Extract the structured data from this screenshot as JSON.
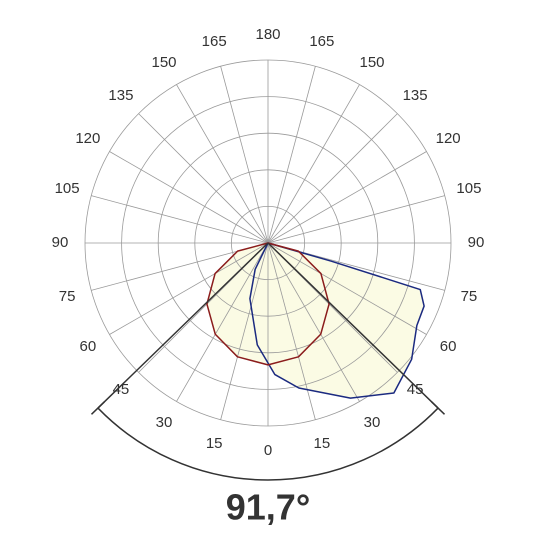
{
  "chart_data": {
    "type": "polar",
    "rlim": [
      0,
      5
    ],
    "rticks": [
      1,
      2,
      3,
      4,
      5
    ],
    "angle_ticks": [
      0,
      15,
      30,
      45,
      60,
      75,
      90,
      105,
      120,
      135,
      150,
      165,
      180,
      {
        "value": -165,
        "label": "165"
      },
      {
        "value": -150,
        "label": "150"
      },
      {
        "value": -135,
        "label": "135"
      },
      {
        "value": -120,
        "label": "120"
      },
      {
        "value": -105,
        "label": "105"
      },
      {
        "value": -90,
        "label": "90"
      },
      {
        "value": -75,
        "label": "75"
      },
      {
        "value": -60,
        "label": "60"
      },
      {
        "value": -45,
        "label": "45"
      },
      {
        "value": -30,
        "label": "30"
      },
      {
        "value": -15,
        "label": "15"
      }
    ],
    "fill_color": "#fbfbe4",
    "series": [
      {
        "color": "#1b2a80",
        "angles": [
          -30,
          -26,
          -18,
          -6,
          3,
          12,
          28,
          40,
          51,
          61,
          68,
          73,
          74,
          75
        ],
        "values": [
          0,
          0.8,
          1.6,
          2.8,
          3.6,
          4.05,
          4.8,
          5.35,
          5.05,
          4.65,
          4.6,
          4.35,
          1.8,
          0
        ]
      },
      {
        "color": "#8b1c1c",
        "angles": [
          -90,
          -75,
          -60,
          -45,
          -30,
          -15,
          0,
          15,
          30,
          45,
          60,
          75,
          90
        ],
        "values": [
          0,
          0.86,
          1.67,
          2.36,
          2.88,
          3.22,
          3.33,
          3.22,
          2.88,
          2.36,
          1.67,
          0.86,
          0
        ]
      }
    ],
    "beam_angle": {
      "value": 91.7,
      "label": "91,7°"
    }
  }
}
